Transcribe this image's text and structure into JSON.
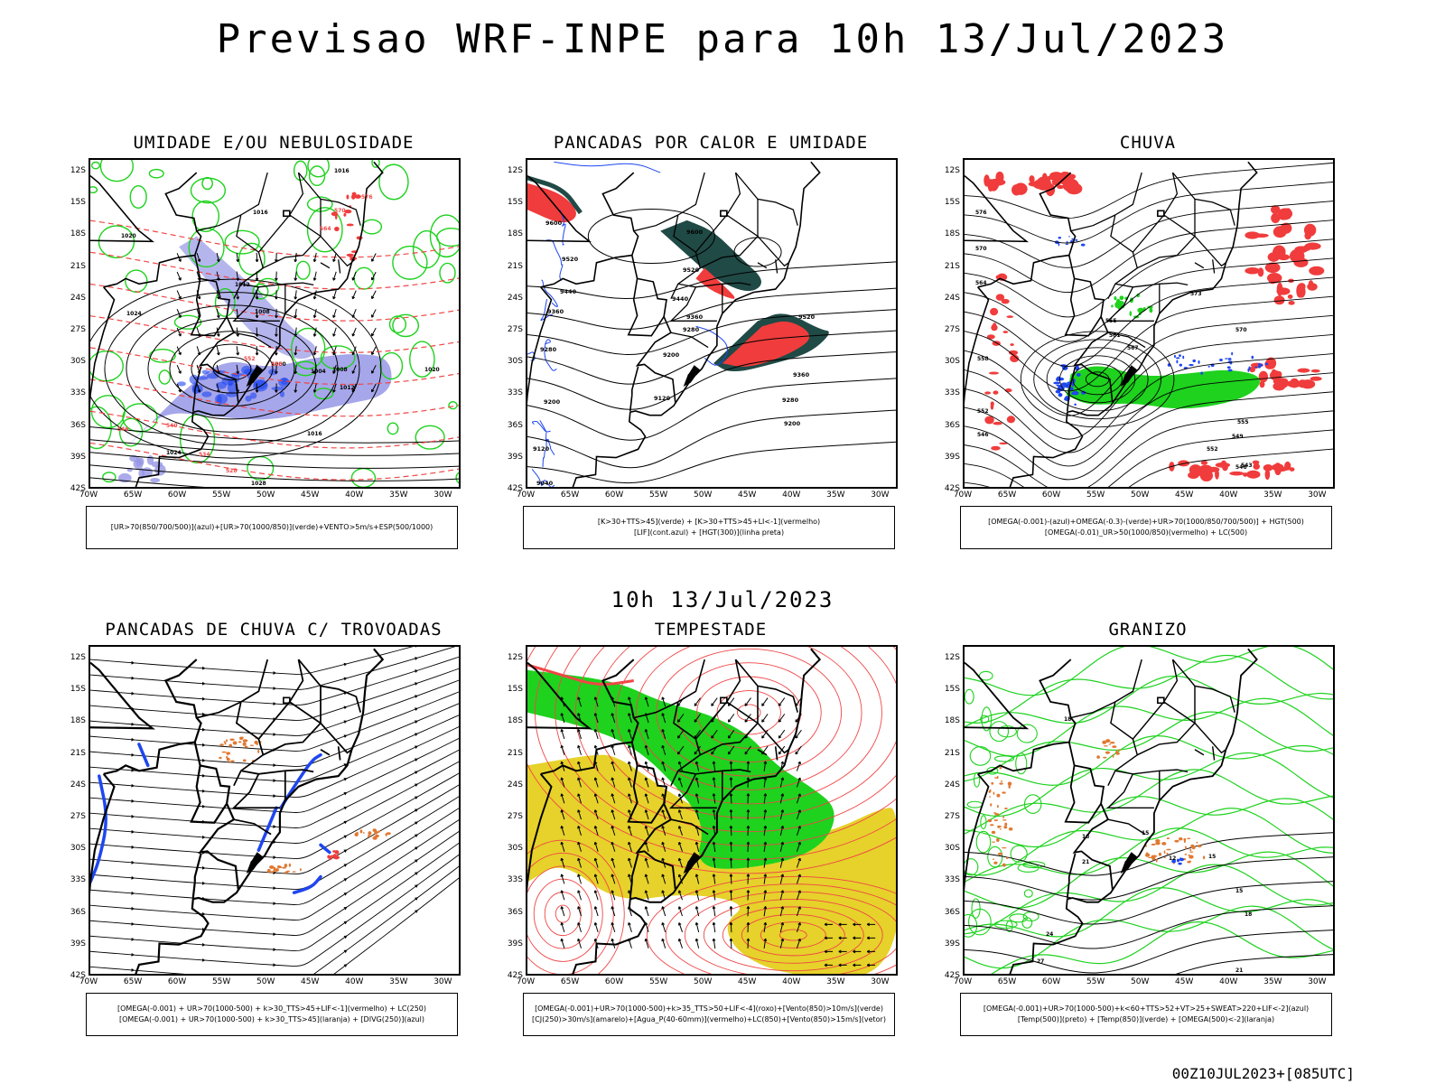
{
  "title": "Previsao WRF-INPE  para 10h 13/Jul/2023",
  "mid_title": "10h 13/Jul/2023",
  "footer": "00Z10JUL2023+[085UTC]",
  "lat_labels": [
    "12S",
    "15S",
    "18S",
    "21S",
    "24S",
    "27S",
    "30S",
    "33S",
    "36S",
    "39S",
    "42S"
  ],
  "lon_labels": [
    "70W",
    "65W",
    "60W",
    "55W",
    "50W",
    "45W",
    "40W",
    "35W",
    "30W"
  ],
  "panels": [
    {
      "title": "UMIDADE E/OU NEBULOSIDADE",
      "legend1": "[UR>70(850/700/500)](azul)+[UR>70(1000/850)](verde)+VENTO>5m/s+ESP(500/1000)",
      "legend2": ""
    },
    {
      "title": "PANCADAS POR CALOR E UMIDADE",
      "legend1": "[K>30+TTS>45](verde) + [K>30+TTS>45+LI<-1](vermelho)",
      "legend2": "[LIF](cont.azul) + [HGT(300)](linha preta)"
    },
    {
      "title": "CHUVA",
      "legend1": "[OMEGA(-0.001)-(azul)+OMEGA(-0.3)-(verde)+UR>70(1000/850/700/500)] + HGT(500)",
      "legend2": "[OMEGA(-0.01)_UR>50(1000/850)(vermelho) + LC(500)"
    },
    {
      "title": "PANCADAS DE CHUVA C/ TROVOADAS",
      "legend1": "[OMEGA(-0.001) + UR>70(1000-500) + k>30_TTS>45+LIF<-1](vermelho) + LC(250)",
      "legend2": "[OMEGA(-0.001) + UR>70(1000-500) + k>30_TTS>45](laranja) + [DIVG(250)](azul)"
    },
    {
      "title": "TEMPESTADE",
      "legend1": "[OMEGA(-0.001)+UR>70(1000-500)+k>35_TTS>50+LIF<-4](roxo)+[Vento(850)>10m/s](verde)",
      "legend2": "[CJ(250)>30m/s](amarelo)+[Agua_P(40-60mm)](vermelho)+LC(850)+[Vento(850)>15m/s](vetor)"
    },
    {
      "title": "GRANIZO",
      "legend1": "[OMEGA(-0.001)+UR>70(1000-500)+k<60+TTS>52+VT>25+SWEAT>220+LIF<-2](azul)",
      "legend2": "[Temp(500)](preto) + [Temp(850)](verde) + [OMEGA(500)<-2](laranja)"
    }
  ],
  "contour_labels": {
    "p1": [
      "1016",
      "1016",
      "1020",
      "1024",
      "1012",
      "1008",
      "1000",
      "1004",
      "1008",
      "1012",
      "1016",
      "1020",
      "1024",
      "1028",
      "570",
      "576",
      "564",
      "558",
      "552",
      "546",
      "540",
      "534",
      "528"
    ],
    "p2": [
      "9600",
      "9520",
      "9440",
      "9360",
      "9280",
      "9200",
      "9120",
      "9040",
      "9600",
      "9520",
      "9440",
      "9360",
      "9280",
      "9200",
      "9120",
      "9520",
      "9360",
      "9280",
      "9200"
    ],
    "p3": [
      "576",
      "570",
      "564",
      "558",
      "552",
      "546",
      "543",
      "555",
      "561",
      "567",
      "573",
      "570",
      "555",
      "549",
      "552",
      "546"
    ],
    "p6": [
      "18",
      "15",
      "12",
      "18",
      "15",
      "21",
      "24",
      "27",
      "15",
      "18",
      "21"
    ]
  },
  "colors": {
    "blue": "#1e46f0",
    "green": "#1ed21e",
    "red": "#f03c3c",
    "orange": "#e07830",
    "lavender": "#9696e6",
    "darkteal": "#204a46",
    "yellow": "#e6d22a",
    "redline": "#f04646",
    "black": "#000000"
  }
}
